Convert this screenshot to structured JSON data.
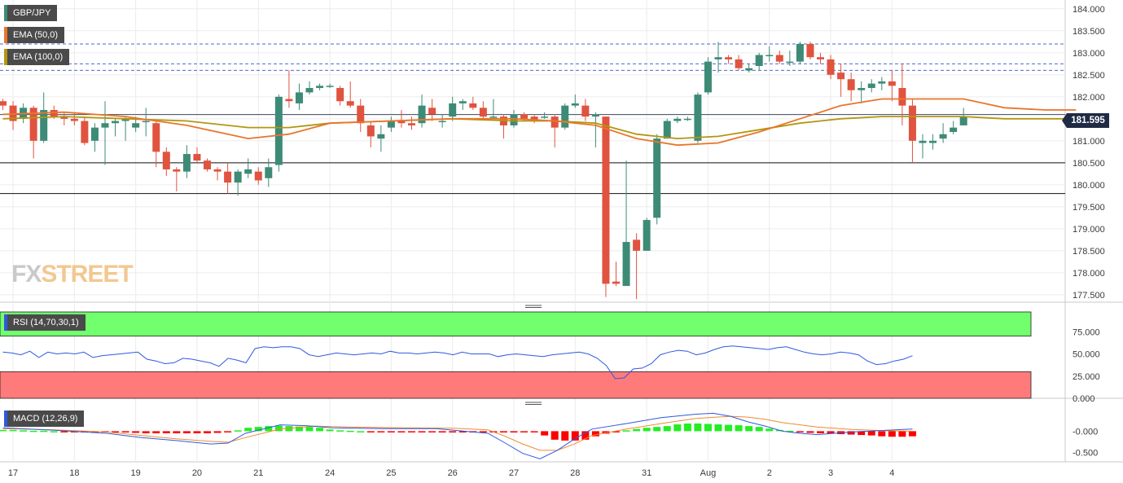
{
  "legend": {
    "symbol": "GBP/JPY",
    "ema50": "EMA (50,0)",
    "ema100": "EMA (100,0)",
    "rsi": "RSI (14,70,30,1)",
    "macd": "MACD (12,26,9)"
  },
  "watermark": {
    "part1": "FX",
    "part2": "STREET"
  },
  "last_price": "181.595",
  "colors": {
    "up": "#3d8b77",
    "down": "#e0533f",
    "ema50": "#e8762c",
    "ema100": "#b29710",
    "rsi_line": "#2f59e0",
    "overbought": "#71ff6e",
    "oversold": "#ff7b7b",
    "macd_line": "#2f59e0",
    "signal_line": "#f08a30",
    "hist_pos": "#22ee22",
    "hist_neg": "#ff0000",
    "level_dashed": "#4a6ad0"
  },
  "chart_data": {
    "type": "candlestick",
    "price_axis": {
      "ticks": [
        "184.000",
        "183.500",
        "183.000",
        "182.500",
        "182.000",
        "181.500",
        "181.000",
        "180.500",
        "180.000",
        "179.500",
        "179.000",
        "178.500",
        "178.000",
        "177.500"
      ],
      "ylim": [
        177.35,
        184.2
      ]
    },
    "x_labels": [
      {
        "i": 1,
        "label": "17"
      },
      {
        "i": 7,
        "label": "18"
      },
      {
        "i": 13,
        "label": "19"
      },
      {
        "i": 19,
        "label": "20"
      },
      {
        "i": 25,
        "label": "21"
      },
      {
        "i": 32,
        "label": "24"
      },
      {
        "i": 38,
        "label": "25"
      },
      {
        "i": 44,
        "label": "26"
      },
      {
        "i": 50,
        "label": "27"
      },
      {
        "i": 56,
        "label": "28"
      },
      {
        "i": 63,
        "label": "31"
      },
      {
        "i": 69,
        "label": "Aug"
      },
      {
        "i": 75,
        "label": "2"
      },
      {
        "i": 81,
        "label": "3"
      },
      {
        "i": 87,
        "label": "4"
      }
    ],
    "candles": [
      [
        181.9,
        181.8,
        181.95,
        181.7
      ],
      [
        181.8,
        181.45,
        181.9,
        181.25
      ],
      [
        181.5,
        181.75,
        181.85,
        181.4
      ],
      [
        181.75,
        181.0,
        181.8,
        180.6
      ],
      [
        181.0,
        181.7,
        182.1,
        180.95
      ],
      [
        181.7,
        181.55,
        181.8,
        181.5
      ],
      [
        181.55,
        181.5,
        181.65,
        181.35
      ],
      [
        181.5,
        181.45,
        181.65,
        181.35
      ],
      [
        181.45,
        180.95,
        181.55,
        180.9
      ],
      [
        181.0,
        181.3,
        181.4,
        180.75
      ],
      [
        181.3,
        181.4,
        181.9,
        180.45
      ],
      [
        181.4,
        181.45,
        181.5,
        181.1
      ],
      [
        181.45,
        181.5,
        181.55,
        181.0
      ],
      [
        181.3,
        181.4,
        181.55,
        181.2
      ],
      [
        181.45,
        181.45,
        181.75,
        181.1
      ],
      [
        181.4,
        180.75,
        181.45,
        180.4
      ],
      [
        180.75,
        180.35,
        180.85,
        180.2
      ],
      [
        180.35,
        180.3,
        180.4,
        179.85
      ],
      [
        180.3,
        180.7,
        180.9,
        180.15
      ],
      [
        180.7,
        180.55,
        180.85,
        180.5
      ],
      [
        180.55,
        180.35,
        180.6,
        180.3
      ],
      [
        180.35,
        180.3,
        180.4,
        180.1
      ],
      [
        180.3,
        180.05,
        180.5,
        179.8
      ],
      [
        180.05,
        180.3,
        180.35,
        179.75
      ],
      [
        180.25,
        180.35,
        180.6,
        180.15
      ],
      [
        180.3,
        180.1,
        180.4,
        180.0
      ],
      [
        180.15,
        180.4,
        180.6,
        179.95
      ],
      [
        180.45,
        182.0,
        182.05,
        180.3
      ],
      [
        181.95,
        181.9,
        182.6,
        181.75
      ],
      [
        181.85,
        182.1,
        182.3,
        181.7
      ],
      [
        182.1,
        182.2,
        182.35,
        182.05
      ],
      [
        182.2,
        182.25,
        182.3,
        182.15
      ],
      [
        182.25,
        182.25,
        182.3,
        182.2
      ],
      [
        182.2,
        181.9,
        182.25,
        181.8
      ],
      [
        181.9,
        181.8,
        182.35,
        181.75
      ],
      [
        181.8,
        181.4,
        181.95,
        181.2
      ],
      [
        181.35,
        181.1,
        181.45,
        180.85
      ],
      [
        181.05,
        181.15,
        181.35,
        180.75
      ],
      [
        181.3,
        181.45,
        181.55,
        181.2
      ],
      [
        181.45,
        181.4,
        181.7,
        181.3
      ],
      [
        181.4,
        181.35,
        181.55,
        181.25
      ],
      [
        181.4,
        181.8,
        182.05,
        181.3
      ],
      [
        181.75,
        181.6,
        181.95,
        181.45
      ],
      [
        181.45,
        181.45,
        181.6,
        181.3
      ],
      [
        181.55,
        181.85,
        182.0,
        181.45
      ],
      [
        181.85,
        181.9,
        181.95,
        181.7
      ],
      [
        181.85,
        181.75,
        182.0,
        181.7
      ],
      [
        181.75,
        181.55,
        181.9,
        181.5
      ],
      [
        181.55,
        181.55,
        181.95,
        181.5
      ],
      [
        181.55,
        181.35,
        181.6,
        181.05
      ],
      [
        181.35,
        181.6,
        181.7,
        181.3
      ],
      [
        181.6,
        181.5,
        181.65,
        181.45
      ],
      [
        181.55,
        181.45,
        181.6,
        181.4
      ],
      [
        181.55,
        181.55,
        181.65,
        181.5
      ],
      [
        181.55,
        181.3,
        181.6,
        180.85
      ],
      [
        181.3,
        181.8,
        181.85,
        181.25
      ],
      [
        181.8,
        181.85,
        182.05,
        181.75
      ],
      [
        181.8,
        181.55,
        181.95,
        181.45
      ],
      [
        181.55,
        181.6,
        181.65,
        180.85
      ],
      [
        181.55,
        177.75,
        181.55,
        177.45
      ],
      [
        177.8,
        177.75,
        178.25,
        177.7
      ],
      [
        177.7,
        178.7,
        180.55,
        177.75
      ],
      [
        178.75,
        178.5,
        178.9,
        177.4
      ],
      [
        178.5,
        179.2,
        179.25,
        178.5
      ],
      [
        179.25,
        181.05,
        181.15,
        179.1
      ],
      [
        181.05,
        181.45,
        181.5,
        181.05
      ],
      [
        181.45,
        181.5,
        181.55,
        181.4
      ],
      [
        181.5,
        181.5,
        181.55,
        181.45
      ],
      [
        181.0,
        182.05,
        182.1,
        180.95
      ],
      [
        182.1,
        182.8,
        182.9,
        182.05
      ],
      [
        182.85,
        182.9,
        183.25,
        182.55
      ],
      [
        182.9,
        182.85,
        182.95,
        182.75
      ],
      [
        182.85,
        182.65,
        182.95,
        182.6
      ],
      [
        182.6,
        182.65,
        182.75,
        182.55
      ],
      [
        182.7,
        182.95,
        183.0,
        182.6
      ],
      [
        182.95,
        182.95,
        183.15,
        182.8
      ],
      [
        182.95,
        182.8,
        183.05,
        182.75
      ],
      [
        182.8,
        182.8,
        183.05,
        182.7
      ],
      [
        182.8,
        183.2,
        183.25,
        182.75
      ],
      [
        183.2,
        182.9,
        183.25,
        182.85
      ],
      [
        182.9,
        182.85,
        183.0,
        182.75
      ],
      [
        182.85,
        182.5,
        182.95,
        182.4
      ],
      [
        182.55,
        182.4,
        182.75,
        182.0
      ],
      [
        182.4,
        182.15,
        182.55,
        181.9
      ],
      [
        182.15,
        182.2,
        182.35,
        181.85
      ],
      [
        182.2,
        182.3,
        182.4,
        182.1
      ],
      [
        182.3,
        182.35,
        182.45,
        182.15
      ],
      [
        182.35,
        182.25,
        182.6,
        181.9
      ],
      [
        182.2,
        181.8,
        182.75,
        181.35
      ],
      [
        181.8,
        181.0,
        181.95,
        180.5
      ],
      [
        180.95,
        181.0,
        181.15,
        180.6
      ],
      [
        180.95,
        181.0,
        181.15,
        180.8
      ],
      [
        181.05,
        181.15,
        181.4,
        180.95
      ],
      [
        181.2,
        181.3,
        181.45,
        181.15
      ],
      [
        181.35,
        181.55,
        181.75,
        181.35
      ]
    ],
    "ema50": [
      [
        0,
        181.6
      ],
      [
        6,
        181.65
      ],
      [
        12,
        181.55
      ],
      [
        18,
        181.35
      ],
      [
        24,
        181.05
      ],
      [
        28,
        181.15
      ],
      [
        32,
        181.4
      ],
      [
        38,
        181.45
      ],
      [
        44,
        181.5
      ],
      [
        50,
        181.5
      ],
      [
        54,
        181.45
      ],
      [
        58,
        181.35
      ],
      [
        62,
        181.05
      ],
      [
        66,
        180.9
      ],
      [
        70,
        180.95
      ],
      [
        74,
        181.2
      ],
      [
        78,
        181.5
      ],
      [
        82,
        181.8
      ],
      [
        86,
        181.95
      ],
      [
        90,
        181.95
      ],
      [
        94,
        181.95
      ],
      [
        96,
        181.85
      ],
      [
        98,
        181.75
      ],
      [
        102,
        181.7
      ],
      [
        105,
        181.7
      ]
    ],
    "ema100": [
      [
        0,
        181.5
      ],
      [
        6,
        181.55
      ],
      [
        12,
        181.5
      ],
      [
        18,
        181.45
      ],
      [
        24,
        181.3
      ],
      [
        28,
        181.3
      ],
      [
        32,
        181.4
      ],
      [
        38,
        181.45
      ],
      [
        44,
        181.5
      ],
      [
        50,
        181.45
      ],
      [
        54,
        181.45
      ],
      [
        58,
        181.4
      ],
      [
        62,
        181.15
      ],
      [
        66,
        181.05
      ],
      [
        70,
        181.1
      ],
      [
        74,
        181.25
      ],
      [
        78,
        181.4
      ],
      [
        82,
        181.5
      ],
      [
        86,
        181.55
      ],
      [
        90,
        181.55
      ],
      [
        94,
        181.55
      ],
      [
        98,
        181.5
      ],
      [
        102,
        181.5
      ],
      [
        105,
        181.5
      ]
    ],
    "levels": {
      "dashed": [
        183.2,
        182.75,
        182.6
      ],
      "solid": [
        180.5,
        179.8
      ]
    },
    "rsi": {
      "ticks": [
        "75.000",
        "50.000",
        "25.000",
        "0.000"
      ],
      "ylim": [
        0,
        100
      ],
      "overbought": 70,
      "oversold": 30,
      "values": [
        52,
        51,
        49,
        53,
        46,
        52,
        50,
        51,
        50,
        52,
        46,
        48,
        49,
        50,
        51,
        52,
        44,
        42,
        39,
        40,
        45,
        44,
        42,
        40,
        36,
        45,
        43,
        40,
        56,
        58,
        57,
        58,
        58,
        56,
        49,
        47,
        49,
        51,
        50,
        49,
        50,
        51,
        50,
        53,
        51,
        51,
        50,
        51,
        52,
        51,
        49,
        52,
        50,
        50,
        50,
        47,
        49,
        50,
        49,
        48,
        47,
        49,
        50,
        51,
        52,
        50,
        45,
        37,
        22,
        23,
        33,
        34,
        39,
        49,
        52,
        54,
        53,
        49,
        51,
        55,
        58,
        59,
        58,
        57,
        56,
        55,
        57,
        58,
        55,
        52,
        50,
        49,
        50,
        52,
        51,
        49,
        42,
        38,
        39,
        42,
        44,
        48
      ]
    },
    "macd": {
      "ticks": [
        "-0.000",
        "-0.500"
      ],
      "ylim": [
        -0.72,
        0.62
      ],
      "macd": [
        [
          0,
          0.08
        ],
        [
          6,
          0.02
        ],
        [
          12,
          -0.05
        ],
        [
          16,
          -0.15
        ],
        [
          20,
          -0.22
        ],
        [
          24,
          -0.3
        ],
        [
          26,
          -0.28
        ],
        [
          28,
          -0.05
        ],
        [
          32,
          0.15
        ],
        [
          35,
          0.13
        ],
        [
          38,
          0.08
        ],
        [
          44,
          0.06
        ],
        [
          50,
          0.06
        ],
        [
          56,
          -0.05
        ],
        [
          58,
          -0.28
        ],
        [
          60,
          -0.52
        ],
        [
          62,
          -0.65
        ],
        [
          64,
          -0.45
        ],
        [
          66,
          -0.18
        ],
        [
          68,
          0.05
        ],
        [
          72,
          0.18
        ],
        [
          76,
          0.32
        ],
        [
          80,
          0.4
        ],
        [
          82,
          0.42
        ],
        [
          84,
          0.35
        ],
        [
          86,
          0.22
        ],
        [
          88,
          0.12
        ],
        [
          90,
          0.0
        ],
        [
          92,
          -0.05
        ],
        [
          94,
          -0.08
        ],
        [
          96,
          -0.05
        ],
        [
          98,
          -0.02
        ],
        [
          102,
          0.02
        ],
        [
          105,
          0.05
        ]
      ],
      "signal": [
        [
          0,
          0.06
        ],
        [
          6,
          0.03
        ],
        [
          12,
          -0.02
        ],
        [
          16,
          -0.1
        ],
        [
          20,
          -0.18
        ],
        [
          24,
          -0.24
        ],
        [
          26,
          -0.26
        ],
        [
          28,
          -0.15
        ],
        [
          32,
          0.05
        ],
        [
          36,
          0.12
        ],
        [
          40,
          0.1
        ],
        [
          46,
          0.08
        ],
        [
          52,
          0.07
        ],
        [
          56,
          0.03
        ],
        [
          58,
          -0.12
        ],
        [
          60,
          -0.3
        ],
        [
          62,
          -0.45
        ],
        [
          64,
          -0.45
        ],
        [
          66,
          -0.3
        ],
        [
          68,
          -0.1
        ],
        [
          72,
          0.05
        ],
        [
          76,
          0.18
        ],
        [
          80,
          0.3
        ],
        [
          84,
          0.35
        ],
        [
          86,
          0.33
        ],
        [
          88,
          0.28
        ],
        [
          90,
          0.2
        ],
        [
          94,
          0.1
        ],
        [
          98,
          0.04
        ],
        [
          102,
          0.01
        ],
        [
          105,
          0.0
        ]
      ],
      "histogram": [
        0.03,
        0.03,
        0.02,
        0.01,
        0.01,
        0.0,
        -0.01,
        -0.02,
        -0.03,
        -0.02,
        -0.01,
        -0.02,
        -0.03,
        -0.04,
        -0.05,
        -0.05,
        -0.05,
        -0.05,
        -0.05,
        -0.05,
        -0.05,
        -0.04,
        -0.02,
        0.02,
        0.08,
        0.1,
        0.12,
        0.13,
        0.12,
        0.11,
        0.1,
        0.08,
        0.04,
        0.02,
        0.01,
        0.0,
        -0.01,
        -0.02,
        -0.01,
        -0.01,
        -0.02,
        -0.01,
        -0.02,
        -0.03,
        -0.03,
        -0.03,
        -0.03,
        -0.03,
        -0.03,
        -0.03,
        -0.03,
        -0.02,
        -0.02,
        -0.1,
        -0.2,
        -0.22,
        -0.22,
        -0.2,
        -0.12,
        -0.06,
        -0.02,
        0.02,
        0.05,
        0.08,
        0.1,
        0.12,
        0.16,
        0.18,
        0.18,
        0.17,
        0.16,
        0.15,
        0.14,
        0.12,
        0.1,
        0.06,
        0.03,
        0.01,
        -0.01,
        -0.04,
        -0.05,
        -0.06,
        -0.07,
        -0.08,
        -0.09,
        -0.1,
        -0.12,
        -0.13,
        -0.13,
        -0.12
      ]
    }
  }
}
